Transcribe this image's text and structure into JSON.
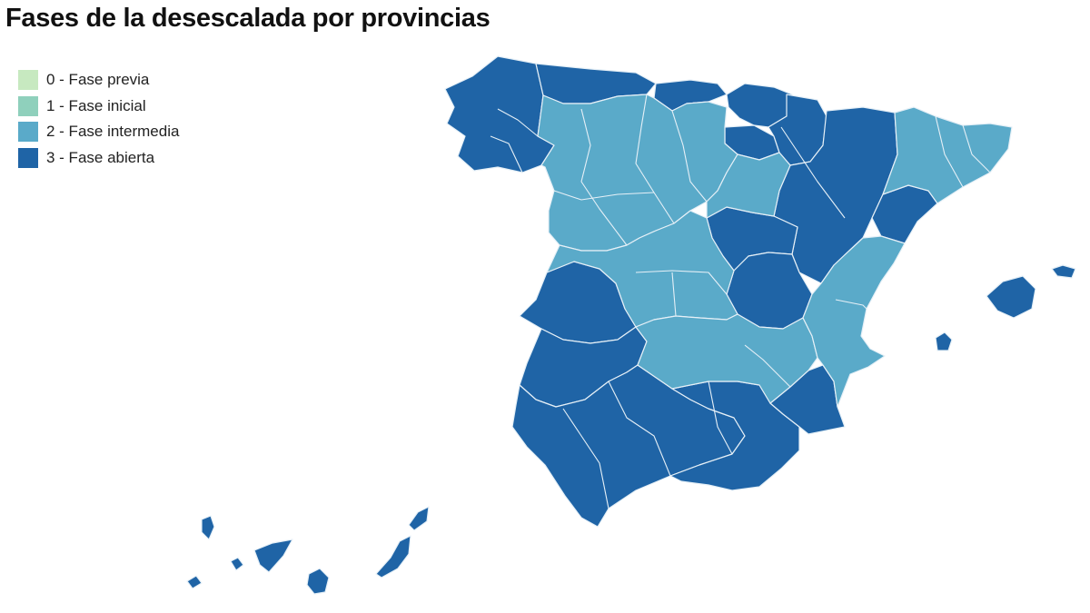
{
  "title": "Fases de la desescalada por provincias",
  "legend": {
    "placement": "top-left",
    "items": [
      {
        "phase": 0,
        "label": "0 - Fase previa",
        "color": "#c7e9c0"
      },
      {
        "phase": 1,
        "label": "1 - Fase inicial",
        "color": "#8fd0bc"
      },
      {
        "phase": 2,
        "label": "2 - Fase intermedia",
        "color": "#5aaac9"
      },
      {
        "phase": 3,
        "label": "3 - Fase abierta",
        "color": "#1f64a6"
      }
    ]
  },
  "colors": {
    "border": "#e6f0f7",
    "background": "#ffffff"
  }
}
